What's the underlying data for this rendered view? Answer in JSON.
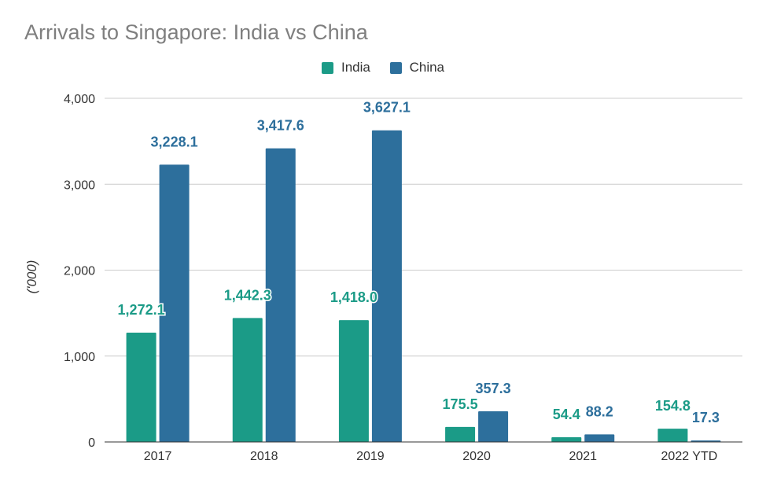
{
  "chart_data": {
    "type": "bar",
    "title": "Arrivals to Singapore: India vs China",
    "xlabel": "",
    "ylabel": "('000)",
    "categories": [
      "2017",
      "2018",
      "2019",
      "2020",
      "2021",
      "2022 YTD"
    ],
    "series": [
      {
        "name": "India",
        "color": "#1b9b87",
        "values": [
          1272.1,
          1442.3,
          1418.0,
          175.5,
          54.4,
          154.8
        ],
        "labels": [
          "1,272.1",
          "1,442.3",
          "1,418.0",
          "175.5",
          "54.4",
          "154.8"
        ]
      },
      {
        "name": "China",
        "color": "#2d6f9c",
        "values": [
          3228.1,
          3417.6,
          3627.1,
          357.3,
          88.2,
          17.3
        ],
        "labels": [
          "3,228.1",
          "3,417.6",
          "3,627.1",
          "357.3",
          "88.2",
          "17.3"
        ]
      }
    ],
    "ylim": [
      0,
      4000
    ],
    "yticks": [
      0,
      1000,
      2000,
      3000,
      4000
    ],
    "ytick_labels": [
      "0",
      "1,000",
      "2,000",
      "3,000",
      "4,000"
    ],
    "grid": true,
    "legend": "top-center"
  }
}
